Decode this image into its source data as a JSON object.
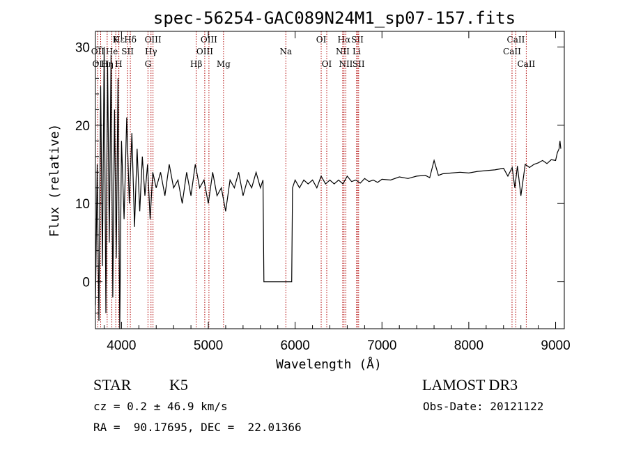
{
  "chart_data": {
    "type": "line",
    "title": "spec-56254-GAC089N24M1_sp07-157.fits",
    "xlabel": "Wavelength (Å)",
    "ylabel": "Flux (relative)",
    "xlim": [
      3700,
      9100
    ],
    "ylim": [
      -6,
      32
    ],
    "xticks": [
      4000,
      5000,
      6000,
      7000,
      8000,
      9000
    ],
    "yticks": [
      0,
      10,
      20,
      30
    ],
    "series": [
      {
        "name": "spectrum",
        "x": [
          3700,
          3720,
          3740,
          3760,
          3780,
          3800,
          3820,
          3840,
          3860,
          3880,
          3900,
          3920,
          3940,
          3960,
          3980,
          4000,
          4030,
          4060,
          4090,
          4120,
          4150,
          4180,
          4210,
          4240,
          4270,
          4300,
          4330,
          4360,
          4400,
          4450,
          4500,
          4550,
          4600,
          4650,
          4700,
          4750,
          4800,
          4850,
          4900,
          4950,
          5000,
          5050,
          5100,
          5150,
          5200,
          5250,
          5300,
          5350,
          5400,
          5450,
          5500,
          5550,
          5600,
          5630,
          5640,
          5900,
          5960,
          5970,
          6000,
          6050,
          6100,
          6150,
          6200,
          6250,
          6300,
          6350,
          6400,
          6450,
          6500,
          6550,
          6600,
          6650,
          6700,
          6750,
          6800,
          6850,
          6900,
          6950,
          7000,
          7100,
          7200,
          7300,
          7400,
          7500,
          7550,
          7600,
          7650,
          7700,
          7800,
          7900,
          8000,
          8100,
          8200,
          8300,
          8400,
          8450,
          8500,
          8530,
          8560,
          8600,
          8650,
          8700,
          8750,
          8800,
          8850,
          8900,
          8950,
          9000,
          9020,
          9040,
          9050,
          9060
        ],
        "y": [
          -3,
          15,
          -5,
          25,
          2,
          30,
          -4,
          28,
          5,
          29,
          -2,
          22,
          3,
          26,
          -6,
          18,
          8,
          21,
          10,
          19,
          7,
          17,
          9,
          16,
          11,
          15,
          8,
          14,
          12,
          14,
          11,
          15,
          12,
          13,
          10,
          14,
          11,
          15,
          12,
          13,
          10,
          14,
          11,
          12,
          9,
          13,
          12,
          14,
          11,
          13,
          12,
          14,
          12,
          13,
          0,
          0,
          0,
          12,
          13,
          12,
          13,
          12.5,
          13,
          12,
          13.5,
          12.5,
          13,
          12.5,
          13,
          12.5,
          13.5,
          12.8,
          13,
          12.6,
          13.2,
          12.8,
          13,
          12.7,
          13.1,
          13,
          13.4,
          13.2,
          13.5,
          13.6,
          13.3,
          15.5,
          13.6,
          13.8,
          13.9,
          14,
          13.9,
          14.1,
          14.2,
          14.3,
          14.5,
          13.5,
          14.6,
          12,
          14.8,
          11,
          15,
          14.6,
          15,
          15.2,
          15.5,
          15.1,
          15.6,
          15.5,
          16.5,
          17,
          18,
          17
        ]
      }
    ],
    "lines": [
      {
        "name": "Hε",
        "wavelength": 3970,
        "row": 1
      },
      {
        "name": "K",
        "wavelength": 3934,
        "row": 1
      },
      {
        "name": "OII",
        "wavelength": 3727,
        "row": 2
      },
      {
        "name": "He",
        "wavelength": 3889,
        "row": 2
      },
      {
        "name": "SII",
        "wavelength": 4070,
        "row": 2
      },
      {
        "name": "OIII",
        "wavelength": 3760,
        "row": 3
      },
      {
        "name": "Hη",
        "wavelength": 3835,
        "row": 3
      },
      {
        "name": "H",
        "wavelength": 3968,
        "row": 3
      },
      {
        "name": "Hδ",
        "wavelength": 4102,
        "row": 1
      },
      {
        "name": "OIII",
        "wavelength": 4363,
        "row": 1
      },
      {
        "name": "Hγ",
        "wavelength": 4340,
        "row": 2
      },
      {
        "name": "G",
        "wavelength": 4305,
        "row": 3
      },
      {
        "name": "OIII",
        "wavelength": 5007,
        "row": 1
      },
      {
        "name": "OIII",
        "wavelength": 4959,
        "row": 2
      },
      {
        "name": "Hβ",
        "wavelength": 4861,
        "row": 3
      },
      {
        "name": "Mg",
        "wavelength": 5175,
        "row": 3
      },
      {
        "name": "Na",
        "wavelength": 5893,
        "row": 2
      },
      {
        "name": "OI",
        "wavelength": 6300,
        "row": 1
      },
      {
        "name": "OI",
        "wavelength": 6364,
        "row": 3
      },
      {
        "name": "Hα",
        "wavelength": 6563,
        "row": 1
      },
      {
        "name": "SII",
        "wavelength": 6717,
        "row": 1
      },
      {
        "name": "NII",
        "wavelength": 6548,
        "row": 2
      },
      {
        "name": "Li",
        "wavelength": 6708,
        "row": 2
      },
      {
        "name": "NII",
        "wavelength": 6584,
        "row": 3
      },
      {
        "name": "SII",
        "wavelength": 6731,
        "row": 3
      },
      {
        "name": "CaII",
        "wavelength": 8542,
        "row": 1
      },
      {
        "name": "CaII",
        "wavelength": 8498,
        "row": 2
      },
      {
        "name": "CaII",
        "wavelength": 8662,
        "row": 3
      }
    ]
  },
  "info": {
    "class_label": "STAR",
    "subclass": "K5",
    "survey": "LAMOST DR3",
    "redshift": "cz = 0.2 ± 46.9 km/s",
    "obs_date": "Obs-Date: 20121122",
    "coords": "RA =  90.17695, DEC =  22.01366"
  }
}
